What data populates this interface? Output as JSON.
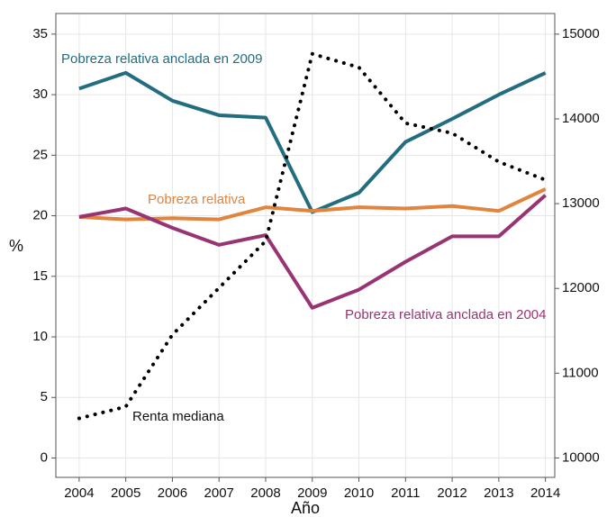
{
  "chart_data": {
    "type": "line",
    "x_label": "Año",
    "y_label": "%",
    "x": [
      2004,
      2005,
      2006,
      2007,
      2008,
      2009,
      2010,
      2011,
      2012,
      2013,
      2014
    ],
    "xlim": [
      2003.5,
      2014.2
    ],
    "xticks": [
      2004,
      2005,
      2006,
      2007,
      2008,
      2009,
      2010,
      2011,
      2012,
      2013,
      2014
    ],
    "ylim": [
      -1.6,
      36.7
    ],
    "yticks": [
      0,
      5,
      10,
      15,
      20,
      25,
      30,
      35
    ],
    "y2lim": [
      9771,
      15243
    ],
    "y2ticks": [
      10000,
      11000,
      12000,
      13000,
      14000,
      15000
    ],
    "grid": true,
    "series": [
      {
        "name": "Pobreza relativa anclada en 2009",
        "color": "#236d80",
        "values": [
          30.5,
          31.8,
          29.5,
          28.3,
          28.1,
          20.3,
          21.9,
          26.1,
          28.0,
          30.0,
          31.8
        ]
      },
      {
        "name": "Pobreza relativa",
        "color": "#e0843e",
        "values": [
          19.9,
          19.7,
          19.8,
          19.7,
          20.7,
          20.4,
          20.7,
          20.6,
          20.8,
          20.4,
          22.2
        ]
      },
      {
        "name": "Pobreza relativa anclada en 2004",
        "color": "#993474",
        "values": [
          19.9,
          20.6,
          19.0,
          17.6,
          18.4,
          12.4,
          13.9,
          16.2,
          18.3,
          18.3,
          21.7
        ]
      },
      {
        "name": "Renta mediana",
        "color": "#000000",
        "axis": "y2",
        "dash": "dotted",
        "values": [
          10467,
          10605,
          11454,
          12006,
          12558,
          14767,
          14607,
          13949,
          13832,
          13493,
          13280
        ]
      }
    ]
  }
}
